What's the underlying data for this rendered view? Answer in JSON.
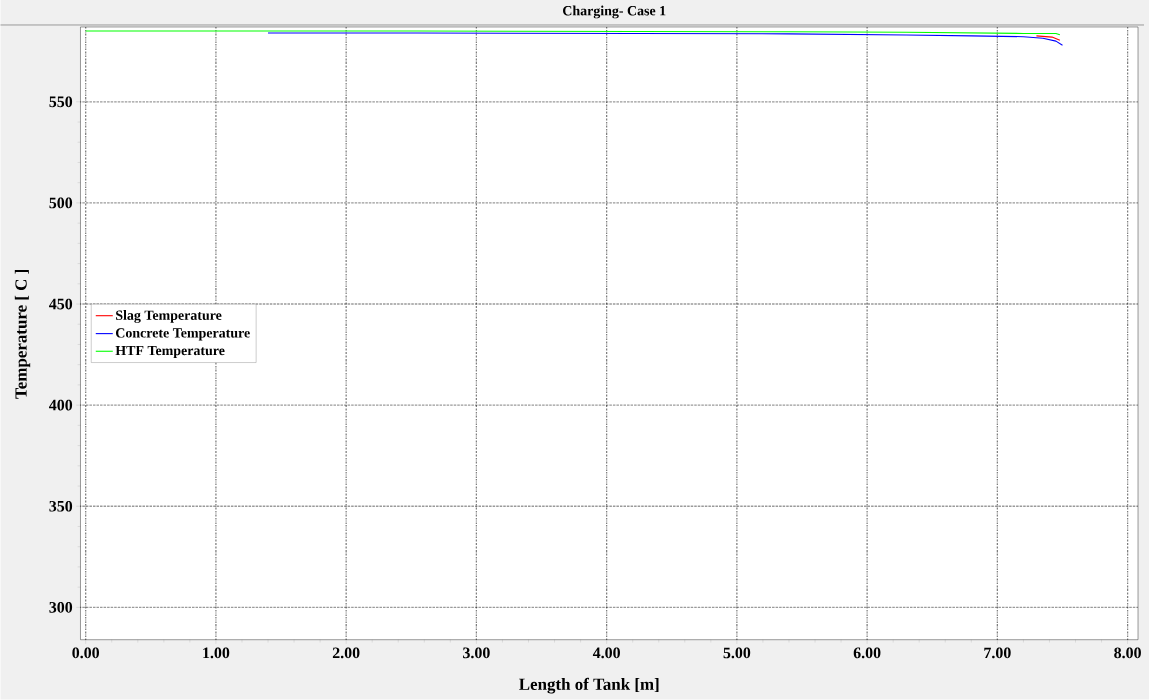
{
  "chart_data": {
    "type": "line",
    "title": "Charging- Case 1",
    "xlabel": "Length of Tank [m]",
    "ylabel": "Temperature [ C ]",
    "xlim": [
      -0.04,
      8.08
    ],
    "ylim": [
      284,
      587
    ],
    "xticks": [
      {
        "value": 0,
        "label": "0.00"
      },
      {
        "value": 1,
        "label": "1.00"
      },
      {
        "value": 2,
        "label": "2.00"
      },
      {
        "value": 3,
        "label": "3.00"
      },
      {
        "value": 4,
        "label": "4.00"
      },
      {
        "value": 5,
        "label": "5.00"
      },
      {
        "value": 6,
        "label": "6.00"
      },
      {
        "value": 7,
        "label": "7.00"
      },
      {
        "value": 8,
        "label": "8.00"
      }
    ],
    "yticks": [
      300,
      350,
      400,
      450,
      500,
      550
    ],
    "grid": true,
    "legend": "left",
    "line_style": "solid",
    "marker": "none",
    "series": [
      {
        "name": "Slag Temperature",
        "color": "#ff0000",
        "x": [
          7.3,
          7.42,
          7.48
        ],
        "values": [
          582.6,
          582.0,
          580.4
        ]
      },
      {
        "name": "Concrete Temperature",
        "color": "#0000ff",
        "x": [
          1.4,
          2.55,
          2.56,
          5.4,
          6.3,
          6.8,
          7.2,
          7.35,
          7.45,
          7.5
        ],
        "values": [
          584.0,
          584.0,
          null,
          583.6,
          583.0,
          582.6,
          582.2,
          581.4,
          580.0,
          578
        ]
      },
      {
        "name": "HTF Temperature",
        "color": "#00ff00",
        "x": [
          0,
          2.55,
          5.4,
          6.3,
          7.2,
          7.45,
          7.48
        ],
        "values": [
          585,
          585,
          584.6,
          584.4,
          583.8,
          583.8,
          583.1
        ]
      }
    ]
  }
}
